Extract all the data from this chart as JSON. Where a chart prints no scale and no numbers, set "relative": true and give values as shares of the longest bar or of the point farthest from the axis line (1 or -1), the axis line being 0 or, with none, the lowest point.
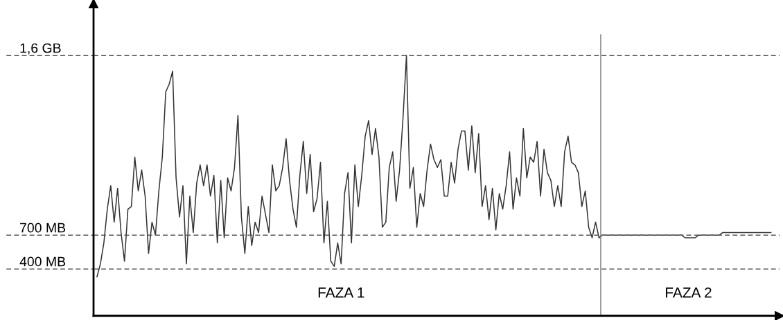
{
  "chart_data": {
    "type": "line",
    "relative": true,
    "tick_labels": "x",
    "grid": false,
    "legend": false,
    "categories": [
      null,
      null,
      null,
      null,
      null,
      null,
      null,
      null,
      null,
      null,
      null,
      null,
      null,
      null,
      null,
      null,
      null,
      null,
      null,
      null,
      null,
      null,
      null,
      null,
      null,
      null,
      null,
      null,
      null,
      null,
      null,
      null,
      null,
      null,
      null,
      null,
      null,
      null,
      null,
      null,
      null,
      null,
      null,
      null,
      null,
      null,
      null,
      null,
      null,
      null,
      null,
      null,
      null,
      null,
      null,
      null,
      null,
      null,
      null,
      null,
      null,
      null,
      null,
      null,
      null,
      null,
      null,
      null,
      null,
      null,
      null,
      "FAZA 1",
      null,
      null,
      null,
      null,
      null,
      null,
      null,
      null,
      null,
      null,
      null,
      null,
      null,
      null,
      null,
      null,
      null,
      null,
      null,
      null,
      null,
      null,
      null,
      null,
      null,
      null,
      null,
      null,
      null,
      null,
      null,
      null,
      null,
      null,
      null,
      null,
      null,
      null,
      null,
      null,
      null,
      null,
      null,
      null,
      null,
      null,
      null,
      null,
      null,
      null,
      null,
      null,
      null,
      null,
      null,
      null,
      null,
      null,
      null,
      null,
      null,
      null,
      null,
      null,
      null,
      null,
      null,
      null,
      null,
      null,
      null,
      null,
      null,
      null,
      null,
      null,
      null,
      null,
      null,
      null,
      null,
      null,
      null,
      null,
      null,
      null,
      null,
      null,
      null,
      null,
      null,
      null,
      null,
      null,
      null,
      null,
      null,
      null,
      null,
      null,
      "FAZA 2",
      null,
      null,
      null,
      null,
      null,
      null,
      null,
      null,
      null,
      null,
      null,
      null,
      null,
      null,
      null,
      null,
      null,
      null,
      null,
      null,
      null,
      null,
      null,
      null
    ],
    "series": [
      {
        "color": "#333333",
        "line_style": "solid",
        "marker": "none",
        "values": [
          0.15,
          0.2,
          0.28,
          0.41,
          0.5,
          0.36,
          0.49,
          0.32,
          0.21,
          0.41,
          0.42,
          0.61,
          0.48,
          0.56,
          0.46,
          0.24,
          0.36,
          0.31,
          0.48,
          0.61,
          0.86,
          0.89,
          0.94,
          0.53,
          0.38,
          0.5,
          0.2,
          0.46,
          0.32,
          0.51,
          0.58,
          0.5,
          0.58,
          0.46,
          0.54,
          0.28,
          0.52,
          0.3,
          0.53,
          0.48,
          0.57,
          0.77,
          0.38,
          0.24,
          0.42,
          0.27,
          0.36,
          0.32,
          0.46,
          0.39,
          0.32,
          0.58,
          0.48,
          0.5,
          0.57,
          0.68,
          0.52,
          0.41,
          0.34,
          0.54,
          0.67,
          0.47,
          0.62,
          0.4,
          0.45,
          0.59,
          0.28,
          0.44,
          0.21,
          0.19,
          0.28,
          0.2,
          0.47,
          0.55,
          0.28,
          0.58,
          0.42,
          0.54,
          0.69,
          0.75,
          0.62,
          0.72,
          0.61,
          0.34,
          0.36,
          0.57,
          0.63,
          0.44,
          0.56,
          0.76,
          1.0,
          0.49,
          0.57,
          0.34,
          0.47,
          0.42,
          0.56,
          0.66,
          0.6,
          0.57,
          0.6,
          0.46,
          0.46,
          0.59,
          0.51,
          0.64,
          0.71,
          0.71,
          0.56,
          0.73,
          0.55,
          0.7,
          0.42,
          0.5,
          0.37,
          0.49,
          0.33,
          0.47,
          0.41,
          0.5,
          0.63,
          0.41,
          0.53,
          0.46,
          0.72,
          0.53,
          0.61,
          0.59,
          0.67,
          0.46,
          0.64,
          0.55,
          0.52,
          0.42,
          0.5,
          0.42,
          0.63,
          0.69,
          0.59,
          0.58,
          0.55,
          0.42,
          0.48,
          0.34,
          0.3,
          0.36,
          0.3,
          null,
          null,
          null,
          null,
          null,
          null,
          null,
          null,
          null,
          null,
          null,
          null,
          null,
          null,
          null,
          null,
          null,
          null,
          null,
          null,
          null,
          null,
          null,
          null,
          null,
          null,
          null,
          null,
          null,
          null,
          null,
          null,
          null,
          null,
          null,
          null,
          null,
          null,
          null,
          null,
          null,
          null,
          null,
          null,
          null,
          null,
          null,
          null,
          null,
          null
        ]
      },
      {
        "color": "#333333",
        "line_style": "solid",
        "marker": "none",
        "values": [
          null,
          null,
          null,
          null,
          null,
          null,
          null,
          null,
          null,
          null,
          null,
          null,
          null,
          null,
          null,
          null,
          null,
          null,
          null,
          null,
          null,
          null,
          null,
          null,
          null,
          null,
          null,
          null,
          null,
          null,
          null,
          null,
          null,
          null,
          null,
          null,
          null,
          null,
          null,
          null,
          null,
          null,
          null,
          null,
          null,
          null,
          null,
          null,
          null,
          null,
          null,
          null,
          null,
          null,
          null,
          null,
          null,
          null,
          null,
          null,
          null,
          null,
          null,
          null,
          null,
          null,
          null,
          null,
          null,
          null,
          null,
          null,
          null,
          null,
          null,
          null,
          null,
          null,
          null,
          null,
          null,
          null,
          null,
          null,
          null,
          null,
          null,
          null,
          null,
          null,
          null,
          null,
          null,
          null,
          null,
          null,
          null,
          null,
          null,
          null,
          null,
          null,
          null,
          null,
          null,
          null,
          null,
          null,
          null,
          null,
          null,
          null,
          null,
          null,
          null,
          null,
          null,
          null,
          null,
          null,
          null,
          null,
          null,
          null,
          null,
          null,
          null,
          null,
          null,
          null,
          null,
          null,
          null,
          null,
          null,
          null,
          null,
          null,
          null,
          null,
          null,
          null,
          null,
          null,
          null,
          null,
          0.3,
          0.31,
          0.31,
          0.31,
          0.31,
          0.31,
          0.31,
          0.31,
          0.31,
          0.31,
          0.31,
          0.31,
          0.31,
          0.31,
          0.31,
          0.31,
          0.31,
          0.31,
          0.31,
          0.31,
          0.31,
          0.31,
          0.31,
          0.31,
          0.31,
          0.3,
          0.3,
          0.3,
          0.3,
          0.31,
          0.31,
          0.31,
          0.31,
          0.31,
          0.31,
          0.31,
          0.32,
          0.32,
          0.32,
          0.32,
          0.32,
          0.32,
          0.32,
          0.32,
          0.32,
          0.32,
          0.32,
          0.32,
          0.32,
          0.32,
          0.32
        ]
      }
    ],
    "ref_lines": [
      {
        "axis": "y",
        "value": 1.0,
        "label": "1,6 GB",
        "color": "#555555",
        "line_style": "dashed"
      },
      {
        "axis": "y",
        "value": 0.31,
        "label": "700 MB",
        "color": "#555555",
        "line_style": "dashed"
      },
      {
        "axis": "y",
        "value": 0.18,
        "label": "400 MB",
        "color": "#555555",
        "line_style": "dashed"
      }
    ]
  }
}
